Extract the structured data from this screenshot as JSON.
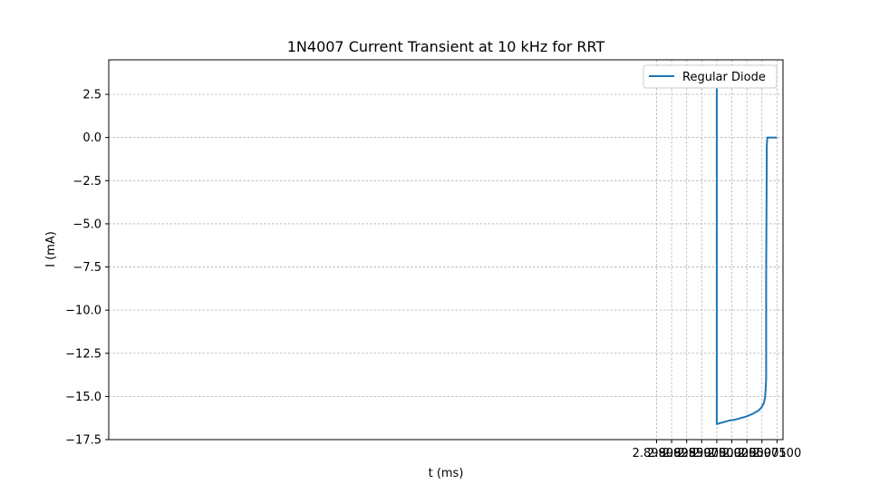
{
  "chart_data": {
    "type": "line",
    "title": "1N4007 Current Transient at 10 kHz for RRT",
    "xlabel": "t (ms)",
    "ylabel": "I (mA)",
    "xlim": [
      2.8899,
      2.9011
    ],
    "ylim": [
      -17.5,
      4.5
    ],
    "xticks": [
      2.899,
      2.89925,
      2.8995,
      2.89975,
      2.9,
      2.90025,
      2.9005,
      2.90075,
      2.901
    ],
    "xtick_labels": [
      "2.89900",
      "2.89925",
      "2.89950",
      "2.89975",
      "2.90000",
      "2.90025",
      "2.90050",
      "2.90075",
      "2.90100"
    ],
    "yticks": [
      2.5,
      0.0,
      -2.5,
      -5.0,
      -7.5,
      -10.0,
      -12.5,
      -15.0,
      -17.5
    ],
    "ytick_labels": [
      "2.5",
      "0.0",
      "−2.5",
      "−5.0",
      "−7.5",
      "−10.0",
      "−12.5",
      "−15.0",
      "−17.5"
    ],
    "grid": true,
    "legend_position": "top-right",
    "series": [
      {
        "name": "Regular Diode",
        "color": "#1f77b4",
        "x": [
          2.899,
          2.9,
          2.9,
          2.9,
          2.9001,
          2.9002,
          2.9003,
          2.9004,
          2.9005,
          2.9006,
          2.9007,
          2.90075,
          2.90078,
          2.9008,
          2.90081,
          2.90082,
          2.90082,
          2.90083,
          2.90083,
          2.90084,
          2.90085,
          2.9009,
          2.90095,
          2.901
        ],
        "y": [
          3.4,
          3.4,
          0.0,
          -16.6,
          -16.5,
          -16.4,
          -16.35,
          -16.25,
          -16.15,
          -16.0,
          -15.8,
          -15.6,
          -15.4,
          -15.1,
          -14.7,
          -14.0,
          -8.0,
          -1.5,
          -0.5,
          0.0,
          0.0,
          0.0,
          0.0,
          0.0
        ]
      }
    ]
  }
}
